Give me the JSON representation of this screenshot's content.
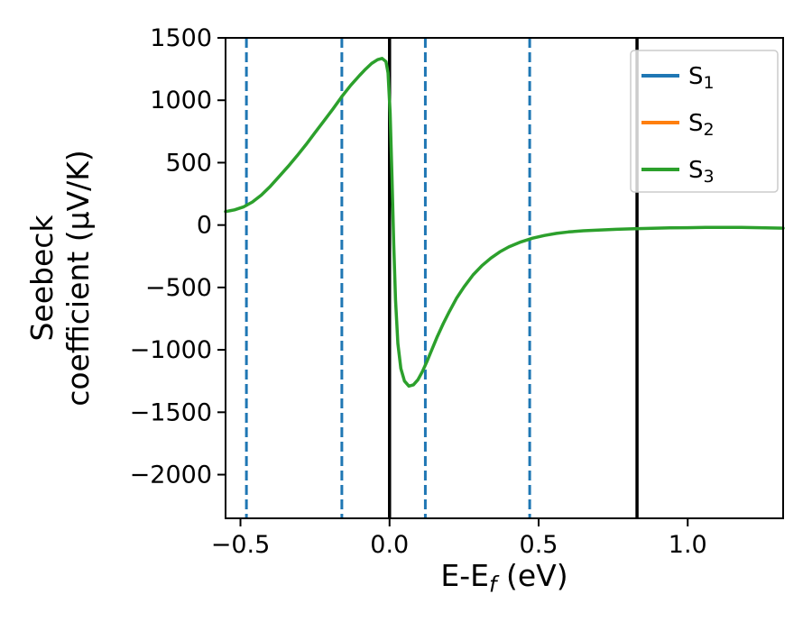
{
  "chart_data": {
    "type": "line",
    "title": "",
    "xlabel": "E-E_f (eV)",
    "ylabel": "Seebeck coefficient (μV/K)",
    "ylabel_lines": [
      "Seebeck",
      "coefficient  (μV/K)"
    ],
    "xlim": [
      -0.55,
      1.32
    ],
    "ylim": [
      -2350,
      1500
    ],
    "grid": false,
    "xticks": [
      {
        "v": -0.5,
        "label": "−0.5"
      },
      {
        "v": 0.0,
        "label": "0.0"
      },
      {
        "v": 0.5,
        "label": "0.5"
      },
      {
        "v": 1.0,
        "label": "1.0"
      }
    ],
    "yticks": [
      {
        "v": 1500,
        "label": "1500"
      },
      {
        "v": 1000,
        "label": "1000"
      },
      {
        "v": 500,
        "label": "500"
      },
      {
        "v": 0,
        "label": "0"
      },
      {
        "v": -500,
        "label": "−500"
      },
      {
        "v": -1000,
        "label": "−1000"
      },
      {
        "v": -1500,
        "label": "−1500"
      },
      {
        "v": -2000,
        "label": "−2000"
      }
    ],
    "legend": {
      "location": "upper right",
      "entries": [
        {
          "label": "S_1",
          "color": "#1f77b4"
        },
        {
          "label": "S_2",
          "color": "#ff7f0e"
        },
        {
          "label": "S_3",
          "color": "#2ca02c"
        }
      ]
    },
    "vlines": [
      {
        "x": -0.48,
        "style": "dashed",
        "color": "#1f77b4"
      },
      {
        "x": -0.16,
        "style": "dashed",
        "color": "#1f77b4"
      },
      {
        "x": 0.12,
        "style": "dashed",
        "color": "#1f77b4"
      },
      {
        "x": 0.47,
        "style": "dashed",
        "color": "#1f77b4"
      },
      {
        "x": 0.0,
        "style": "solid",
        "color": "#000000"
      },
      {
        "x": 0.83,
        "style": "solid",
        "color": "#000000"
      }
    ],
    "series": [
      {
        "name": "S_3",
        "color": "#2ca02c",
        "points": [
          [
            -0.55,
            108
          ],
          [
            -0.52,
            122
          ],
          [
            -0.49,
            145
          ],
          [
            -0.46,
            185
          ],
          [
            -0.43,
            240
          ],
          [
            -0.4,
            310
          ],
          [
            -0.37,
            390
          ],
          [
            -0.34,
            470
          ],
          [
            -0.31,
            555
          ],
          [
            -0.28,
            645
          ],
          [
            -0.25,
            740
          ],
          [
            -0.22,
            835
          ],
          [
            -0.19,
            930
          ],
          [
            -0.16,
            1030
          ],
          [
            -0.13,
            1120
          ],
          [
            -0.1,
            1200
          ],
          [
            -0.08,
            1250
          ],
          [
            -0.06,
            1295
          ],
          [
            -0.04,
            1325
          ],
          [
            -0.025,
            1335
          ],
          [
            -0.012,
            1310
          ],
          [
            -0.005,
            1220
          ],
          [
            0.002,
            900
          ],
          [
            0.008,
            400
          ],
          [
            0.014,
            -150
          ],
          [
            0.02,
            -600
          ],
          [
            0.028,
            -950
          ],
          [
            0.038,
            -1150
          ],
          [
            0.05,
            -1250
          ],
          [
            0.065,
            -1290
          ],
          [
            0.08,
            -1280
          ],
          [
            0.095,
            -1240
          ],
          [
            0.11,
            -1175
          ],
          [
            0.125,
            -1095
          ],
          [
            0.14,
            -1010
          ],
          [
            0.16,
            -895
          ],
          [
            0.18,
            -790
          ],
          [
            0.2,
            -695
          ],
          [
            0.225,
            -585
          ],
          [
            0.25,
            -495
          ],
          [
            0.28,
            -400
          ],
          [
            0.31,
            -325
          ],
          [
            0.34,
            -265
          ],
          [
            0.37,
            -215
          ],
          [
            0.4,
            -175
          ],
          [
            0.44,
            -135
          ],
          [
            0.48,
            -105
          ],
          [
            0.52,
            -83
          ],
          [
            0.56,
            -67
          ],
          [
            0.6,
            -55
          ],
          [
            0.65,
            -46
          ],
          [
            0.7,
            -40
          ],
          [
            0.76,
            -34
          ],
          [
            0.82,
            -30
          ],
          [
            0.88,
            -26
          ],
          [
            0.94,
            -23
          ],
          [
            1.0,
            -21
          ],
          [
            1.06,
            -19
          ],
          [
            1.12,
            -18
          ],
          [
            1.18,
            -19
          ],
          [
            1.24,
            -21
          ],
          [
            1.3,
            -24
          ],
          [
            1.32,
            -25
          ]
        ]
      }
    ],
    "colors": {
      "s1_blue": "#1f77b4",
      "s2_orange": "#ff7f0e",
      "s3_green": "#2ca02c",
      "axis_black": "#000000",
      "legend_border": "#cccccc"
    }
  }
}
